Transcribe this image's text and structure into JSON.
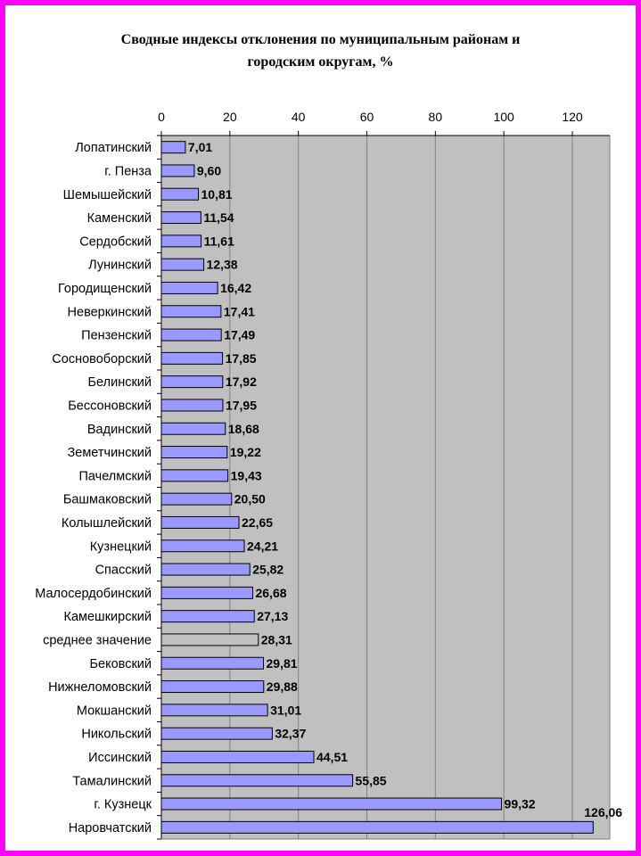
{
  "chart_data": {
    "type": "bar",
    "orientation": "horizontal",
    "title": "Сводные индексы отклонения по муниципальным районам и городским округам, %",
    "title_lines": [
      "Сводные индексы отклонения по муниципальным районам и",
      "городским округам, %"
    ],
    "categories": [
      "Лопатинский",
      "г. Пенза",
      "Шемышейский",
      "Каменский",
      "Сердобский",
      "Лунинский",
      "Городищенский",
      "Неверкинский",
      "Пензенский",
      "Сосновоборский",
      "Белинский",
      "Бессоновский",
      "Вадинский",
      "Земетчинский",
      "Пачелмский",
      "Башмаковский",
      "Колышлейский",
      "Кузнецкий",
      "Спасский",
      "Малосердобинский",
      "Камешкирский",
      "среднее значение",
      "Бековский",
      "Нижнеломовский",
      "Мокшанский",
      "Никольский",
      "Иссинский",
      "Тамалинский",
      "г. Кузнецк",
      "Наровчатский"
    ],
    "values": [
      7.01,
      9.6,
      10.81,
      11.54,
      11.61,
      12.38,
      16.42,
      17.41,
      17.49,
      17.85,
      17.92,
      17.95,
      18.68,
      19.22,
      19.43,
      20.5,
      22.65,
      24.21,
      25.82,
      26.68,
      27.13,
      28.31,
      29.81,
      29.88,
      31.01,
      32.37,
      44.51,
      55.85,
      99.32,
      126.06
    ],
    "value_labels": [
      "7,01",
      "9,60",
      "10,81",
      "11,54",
      "11,61",
      "12,38",
      "16,42",
      "17,41",
      "17,49",
      "17,85",
      "17,92",
      "17,95",
      "18,68",
      "19,22",
      "19,43",
      "20,50",
      "22,65",
      "24,21",
      "25,82",
      "26,68",
      "27,13",
      "28,31",
      "29,81",
      "29,88",
      "31,01",
      "32,37",
      "44,51",
      "55,85",
      "99,32",
      "126,06"
    ],
    "highlight_category": "среднее значение",
    "x_ticks": [
      "0",
      "20",
      "40",
      "60",
      "80",
      "100",
      "120"
    ],
    "xlim": [
      0,
      130
    ],
    "x_axis_position": "top",
    "grid": true,
    "colors": {
      "bar": "#9999ff",
      "highlight_bar": "#c0c0c0",
      "plot_background": "#c0c0c0",
      "frame": "#ff00ff",
      "grid": "#808080"
    }
  }
}
